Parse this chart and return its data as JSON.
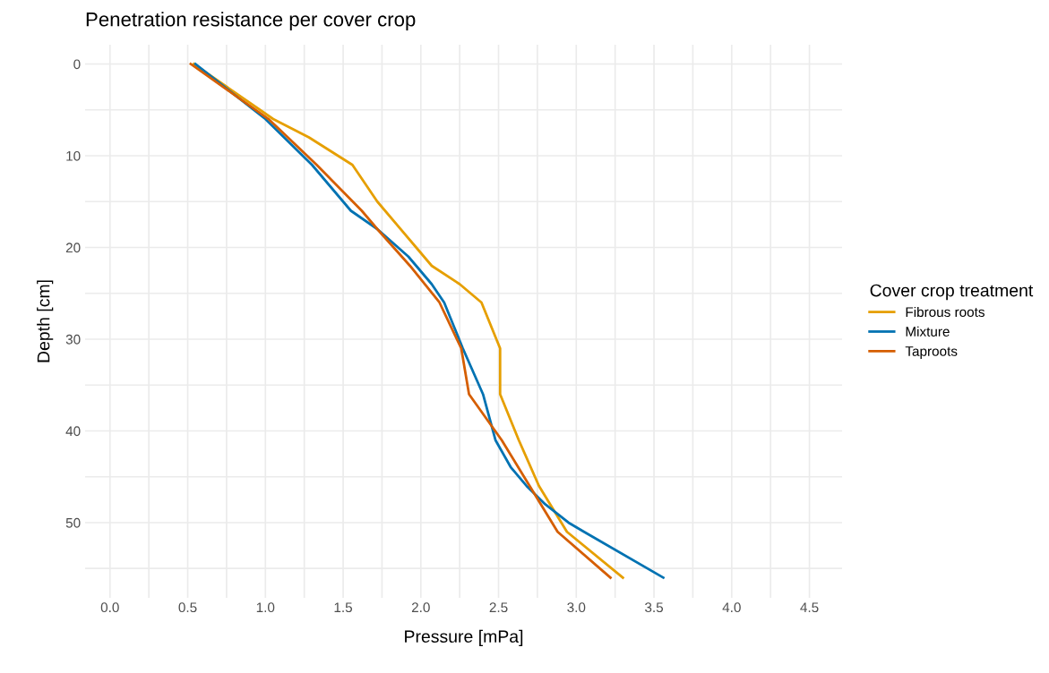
{
  "chart_data": {
    "type": "line",
    "title": "Penetration resistance per cover crop",
    "xlabel": "Pressure [mPa]",
    "ylabel": "Depth [cm]",
    "legend_title": "Cover crop treatment",
    "series": [
      {
        "name": "Fibrous roots",
        "color": "#e69f00",
        "x": [
          0.54,
          1.05,
          1.28,
          1.56,
          1.72,
          1.97,
          2.07,
          2.25,
          2.39,
          2.51,
          2.51,
          2.63,
          2.76,
          2.94,
          3.3
        ],
        "values": [
          0,
          6,
          8,
          11,
          15,
          20,
          22,
          24,
          26,
          31,
          36,
          41,
          46,
          51,
          56
        ]
      },
      {
        "name": "Mixture",
        "color": "#0072b2",
        "x": [
          0.55,
          1.0,
          1.3,
          1.55,
          1.72,
          1.92,
          2.07,
          2.15,
          2.27,
          2.4,
          2.48,
          2.58,
          2.68,
          2.8,
          2.95,
          3.05,
          3.56
        ],
        "values": [
          0,
          6,
          11,
          16,
          18,
          21,
          24,
          26,
          31,
          36,
          41,
          44,
          46,
          48,
          50,
          51,
          56
        ]
      },
      {
        "name": "Taproots",
        "color": "#d55e00",
        "x": [
          0.52,
          1.02,
          1.33,
          1.62,
          1.72,
          1.93,
          2.12,
          2.26,
          2.31,
          2.52,
          2.7,
          2.88,
          3.22
        ],
        "values": [
          0,
          6,
          11,
          16,
          18,
          22,
          26,
          31,
          36,
          41,
          46,
          51,
          56
        ]
      }
    ],
    "xlim": [
      -0.16,
      4.71
    ],
    "ylim": [
      58.2,
      -2.1
    ],
    "xticks": [
      {
        "value": 0,
        "label": "0.0"
      },
      {
        "value": 0.25,
        "label": null
      },
      {
        "value": 0.5,
        "label": "0.5"
      },
      {
        "value": 0.75,
        "label": null
      },
      {
        "value": 1,
        "label": "1.0"
      },
      {
        "value": 1.25,
        "label": null
      },
      {
        "value": 1.5,
        "label": "1.5"
      },
      {
        "value": 1.75,
        "label": null
      },
      {
        "value": 2,
        "label": "2.0"
      },
      {
        "value": 2.25,
        "label": null
      },
      {
        "value": 2.5,
        "label": "2.5"
      },
      {
        "value": 2.75,
        "label": null
      },
      {
        "value": 3,
        "label": "3.0"
      },
      {
        "value": 3.25,
        "label": null
      },
      {
        "value": 3.5,
        "label": "3.5"
      },
      {
        "value": 3.75,
        "label": null
      },
      {
        "value": 4,
        "label": "4.0"
      },
      {
        "value": 4.25,
        "label": null
      },
      {
        "value": 4.5,
        "label": "4.5"
      }
    ],
    "yticks": [
      0,
      {
        "value": 5,
        "label": null
      },
      10,
      {
        "value": 15,
        "label": null
      },
      20,
      {
        "value": 25,
        "label": null
      },
      30,
      {
        "value": 35,
        "label": null
      },
      40,
      {
        "value": 45,
        "label": null
      },
      50,
      {
        "value": 55,
        "label": null
      }
    ],
    "grid": true,
    "legend": "right",
    "marker": "none",
    "line_style": "solid"
  }
}
